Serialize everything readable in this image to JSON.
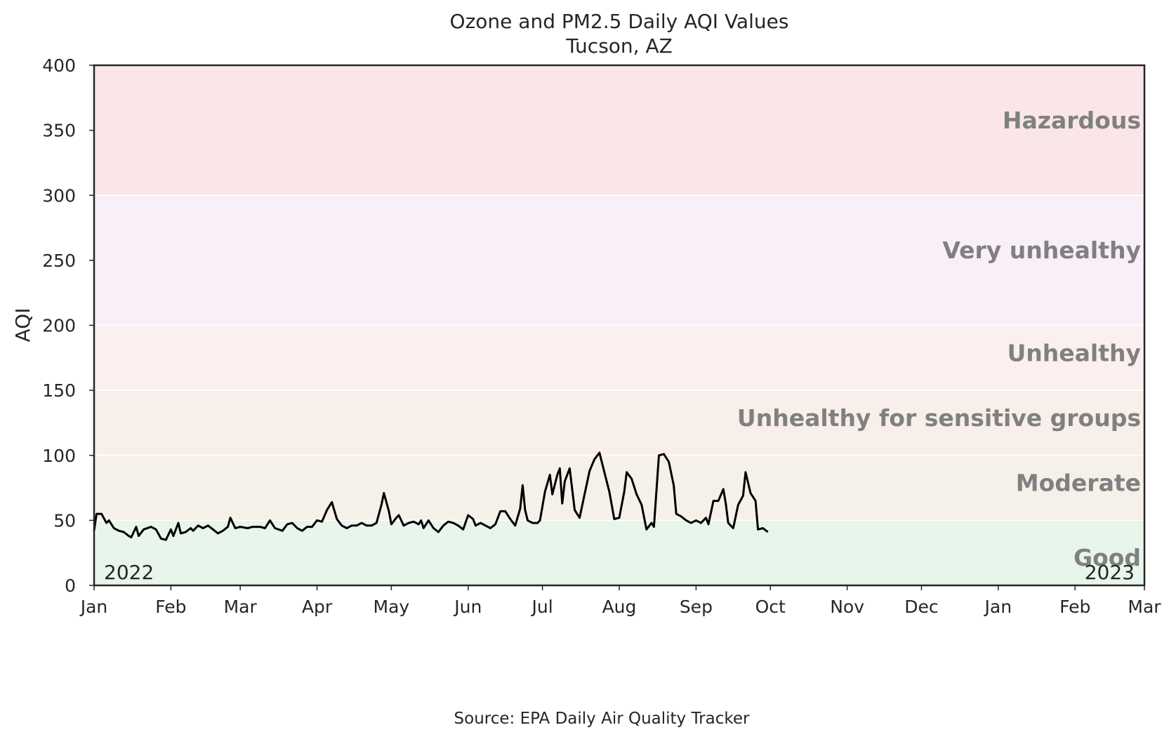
{
  "chart_data": {
    "type": "line",
    "title": "Ozone and PM2.5 Daily AQI Values",
    "subtitle": "Tucson, AZ",
    "xlabel": "",
    "ylabel": "AQI",
    "source": "Source: EPA Daily Air Quality Tracker",
    "xlim": [
      "2022-01-01",
      "2023-03-01"
    ],
    "ylim": [
      0,
      400
    ],
    "yticks": [
      0,
      50,
      100,
      150,
      200,
      250,
      300,
      350,
      400
    ],
    "xticks": [
      {
        "date": "2022-01-01",
        "label": "Jan"
      },
      {
        "date": "2022-02-01",
        "label": "Feb"
      },
      {
        "date": "2022-03-01",
        "label": "Mar"
      },
      {
        "date": "2022-04-01",
        "label": "Apr"
      },
      {
        "date": "2022-05-01",
        "label": "May"
      },
      {
        "date": "2022-06-01",
        "label": "Jun"
      },
      {
        "date": "2022-07-01",
        "label": "Jul"
      },
      {
        "date": "2022-08-01",
        "label": "Aug"
      },
      {
        "date": "2022-09-01",
        "label": "Sep"
      },
      {
        "date": "2022-10-01",
        "label": "Oct"
      },
      {
        "date": "2022-11-01",
        "label": "Nov"
      },
      {
        "date": "2022-12-01",
        "label": "Dec"
      },
      {
        "date": "2023-01-01",
        "label": "Jan"
      },
      {
        "date": "2023-02-01",
        "label": "Feb"
      },
      {
        "date": "2023-03-01",
        "label": "Mar"
      }
    ],
    "year_labels": [
      {
        "text": "2022",
        "position": "bottom-left"
      },
      {
        "text": "2023",
        "position": "bottom-right"
      }
    ],
    "grid": false,
    "bands": [
      {
        "name": "Good",
        "from": 0,
        "to": 50,
        "color": "#e8f5ea"
      },
      {
        "name": "Moderate",
        "from": 50,
        "to": 100,
        "color": "#f5f0e8"
      },
      {
        "name": "Unhealthy for sensitive groups",
        "from": 100,
        "to": 150,
        "color": "#f8efea"
      },
      {
        "name": "Unhealthy",
        "from": 150,
        "to": 200,
        "color": "#fcefef"
      },
      {
        "name": "Very unhealthy",
        "from": 200,
        "to": 300,
        "color": "#f8eff8"
      },
      {
        "name": "Hazardous",
        "from": 300,
        "to": 400,
        "color": "#fae6e8"
      }
    ],
    "series": [
      {
        "color": "#000000",
        "points": [
          [
            "2022-01-01",
            42
          ],
          [
            "2022-01-02",
            55
          ],
          [
            "2022-01-04",
            55
          ],
          [
            "2022-01-06",
            48
          ],
          [
            "2022-01-07",
            50
          ],
          [
            "2022-01-09",
            44
          ],
          [
            "2022-01-11",
            42
          ],
          [
            "2022-01-13",
            41
          ],
          [
            "2022-01-15",
            38
          ],
          [
            "2022-01-16",
            37
          ],
          [
            "2022-01-18",
            45
          ],
          [
            "2022-01-19",
            38
          ],
          [
            "2022-01-21",
            43
          ],
          [
            "2022-01-24",
            45
          ],
          [
            "2022-01-26",
            43
          ],
          [
            "2022-01-28",
            36
          ],
          [
            "2022-01-30",
            35
          ],
          [
            "2022-02-01",
            43
          ],
          [
            "2022-02-02",
            38
          ],
          [
            "2022-02-04",
            48
          ],
          [
            "2022-02-05",
            40
          ],
          [
            "2022-02-07",
            41
          ],
          [
            "2022-02-09",
            44
          ],
          [
            "2022-02-10",
            42
          ],
          [
            "2022-02-12",
            46
          ],
          [
            "2022-02-14",
            44
          ],
          [
            "2022-02-16",
            46
          ],
          [
            "2022-02-18",
            43
          ],
          [
            "2022-02-20",
            40
          ],
          [
            "2022-02-22",
            42
          ],
          [
            "2022-02-24",
            45
          ],
          [
            "2022-02-25",
            52
          ],
          [
            "2022-02-27",
            44
          ],
          [
            "2022-03-01",
            45
          ],
          [
            "2022-03-04",
            44
          ],
          [
            "2022-03-06",
            45
          ],
          [
            "2022-03-09",
            45
          ],
          [
            "2022-03-11",
            44
          ],
          [
            "2022-03-13",
            50
          ],
          [
            "2022-03-15",
            44
          ],
          [
            "2022-03-18",
            42
          ],
          [
            "2022-03-20",
            47
          ],
          [
            "2022-03-22",
            48
          ],
          [
            "2022-03-24",
            44
          ],
          [
            "2022-03-26",
            42
          ],
          [
            "2022-03-28",
            45
          ],
          [
            "2022-03-30",
            45
          ],
          [
            "2022-04-01",
            50
          ],
          [
            "2022-04-03",
            49
          ],
          [
            "2022-04-05",
            58
          ],
          [
            "2022-04-07",
            64
          ],
          [
            "2022-04-09",
            51
          ],
          [
            "2022-04-11",
            46
          ],
          [
            "2022-04-13",
            44
          ],
          [
            "2022-04-15",
            46
          ],
          [
            "2022-04-17",
            46
          ],
          [
            "2022-04-19",
            48
          ],
          [
            "2022-04-21",
            46
          ],
          [
            "2022-04-23",
            46
          ],
          [
            "2022-04-25",
            48
          ],
          [
            "2022-04-27",
            62
          ],
          [
            "2022-04-28",
            71
          ],
          [
            "2022-04-30",
            57
          ],
          [
            "2022-05-01",
            47
          ],
          [
            "2022-05-03",
            52
          ],
          [
            "2022-05-04",
            54
          ],
          [
            "2022-05-06",
            46
          ],
          [
            "2022-05-08",
            48
          ],
          [
            "2022-05-10",
            49
          ],
          [
            "2022-05-12",
            47
          ],
          [
            "2022-05-13",
            50
          ],
          [
            "2022-05-14",
            44
          ],
          [
            "2022-05-16",
            50
          ],
          [
            "2022-05-18",
            44
          ],
          [
            "2022-05-20",
            41
          ],
          [
            "2022-05-22",
            46
          ],
          [
            "2022-05-24",
            49
          ],
          [
            "2022-05-26",
            48
          ],
          [
            "2022-05-28",
            46
          ],
          [
            "2022-05-30",
            43
          ],
          [
            "2022-06-01",
            54
          ],
          [
            "2022-06-03",
            51
          ],
          [
            "2022-06-04",
            46
          ],
          [
            "2022-06-06",
            48
          ],
          [
            "2022-06-08",
            46
          ],
          [
            "2022-06-10",
            44
          ],
          [
            "2022-06-12",
            47
          ],
          [
            "2022-06-14",
            57
          ],
          [
            "2022-06-16",
            57
          ],
          [
            "2022-06-18",
            51
          ],
          [
            "2022-06-20",
            46
          ],
          [
            "2022-06-22",
            59
          ],
          [
            "2022-06-23",
            77
          ],
          [
            "2022-06-24",
            58
          ],
          [
            "2022-06-25",
            50
          ],
          [
            "2022-06-27",
            48
          ],
          [
            "2022-06-29",
            48
          ],
          [
            "2022-06-30",
            50
          ],
          [
            "2022-07-02",
            72
          ],
          [
            "2022-07-04",
            85
          ],
          [
            "2022-07-05",
            70
          ],
          [
            "2022-07-07",
            85
          ],
          [
            "2022-07-08",
            90
          ],
          [
            "2022-07-09",
            63
          ],
          [
            "2022-07-10",
            80
          ],
          [
            "2022-07-12",
            90
          ],
          [
            "2022-07-14",
            58
          ],
          [
            "2022-07-16",
            52
          ],
          [
            "2022-07-18",
            70
          ],
          [
            "2022-07-20",
            88
          ],
          [
            "2022-07-22",
            97
          ],
          [
            "2022-07-24",
            102
          ],
          [
            "2022-07-26",
            87
          ],
          [
            "2022-07-28",
            72
          ],
          [
            "2022-07-30",
            51
          ],
          [
            "2022-08-01",
            52
          ],
          [
            "2022-08-03",
            72
          ],
          [
            "2022-08-04",
            87
          ],
          [
            "2022-08-06",
            82
          ],
          [
            "2022-08-08",
            70
          ],
          [
            "2022-08-10",
            62
          ],
          [
            "2022-08-12",
            43
          ],
          [
            "2022-08-14",
            48
          ],
          [
            "2022-08-15",
            45
          ],
          [
            "2022-08-17",
            100
          ],
          [
            "2022-08-19",
            101
          ],
          [
            "2022-08-21",
            95
          ],
          [
            "2022-08-23",
            77
          ],
          [
            "2022-08-24",
            55
          ],
          [
            "2022-08-26",
            53
          ],
          [
            "2022-08-28",
            50
          ],
          [
            "2022-08-30",
            48
          ],
          [
            "2022-09-01",
            50
          ],
          [
            "2022-09-03",
            48
          ],
          [
            "2022-09-05",
            52
          ],
          [
            "2022-09-06",
            47
          ],
          [
            "2022-09-08",
            65
          ],
          [
            "2022-09-10",
            65
          ],
          [
            "2022-09-12",
            74
          ],
          [
            "2022-09-13",
            63
          ],
          [
            "2022-09-14",
            48
          ],
          [
            "2022-09-16",
            44
          ],
          [
            "2022-09-18",
            62
          ],
          [
            "2022-09-20",
            69
          ],
          [
            "2022-09-21",
            87
          ],
          [
            "2022-09-23",
            71
          ],
          [
            "2022-09-25",
            65
          ],
          [
            "2022-09-26",
            43
          ],
          [
            "2022-09-28",
            44
          ],
          [
            "2022-09-30",
            41
          ]
        ]
      }
    ]
  }
}
